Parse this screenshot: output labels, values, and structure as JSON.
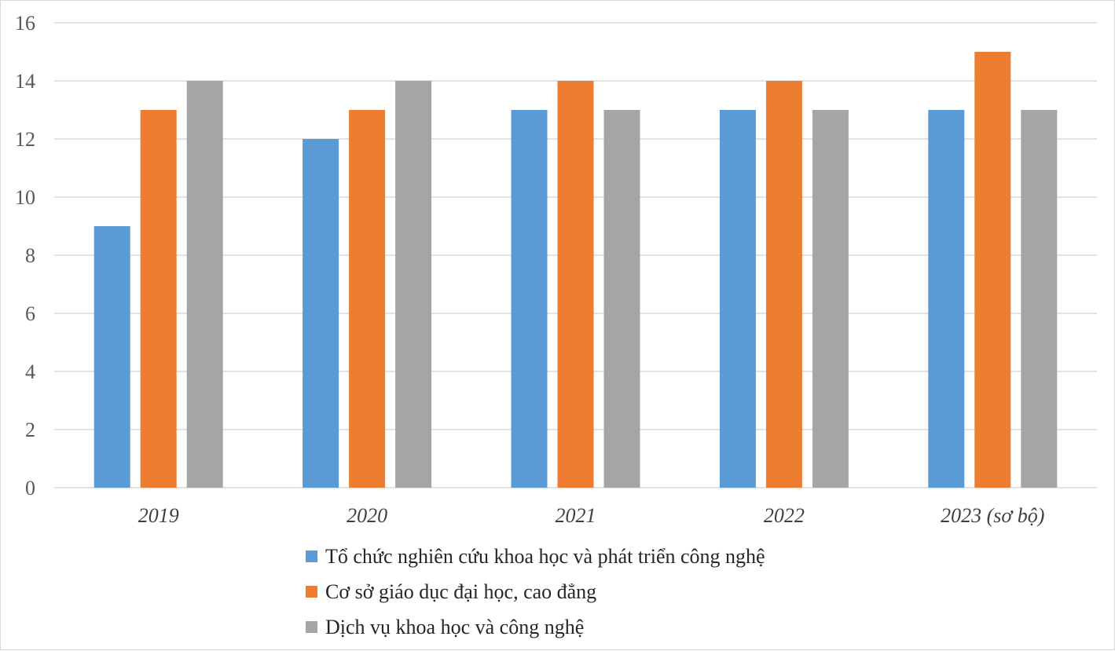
{
  "chart_data": {
    "type": "bar",
    "categories": [
      "2019",
      "2020",
      "2021",
      "2022",
      "2023 (sơ bộ)"
    ],
    "series": [
      {
        "name": "Tổ chức nghiên cứu khoa học và phát triển công nghệ",
        "values": [
          9,
          12,
          13,
          13,
          13
        ],
        "color": "#5b9bd5"
      },
      {
        "name": "Cơ sở giáo dục đại học, cao đẳng",
        "values": [
          13,
          13,
          14,
          14,
          15
        ],
        "color": "#ed7d31"
      },
      {
        "name": "Dịch vụ khoa học và công nghệ",
        "values": [
          14,
          14,
          13,
          13,
          13
        ],
        "color": "#a5a5a5"
      }
    ],
    "yticks": [
      "0",
      "2",
      "4",
      "6",
      "8",
      "10",
      "12",
      "14",
      "16"
    ],
    "ylim": [
      0,
      16
    ],
    "grid": true,
    "legend_position": "bottom",
    "gridline_color": "#d9d9d9"
  }
}
